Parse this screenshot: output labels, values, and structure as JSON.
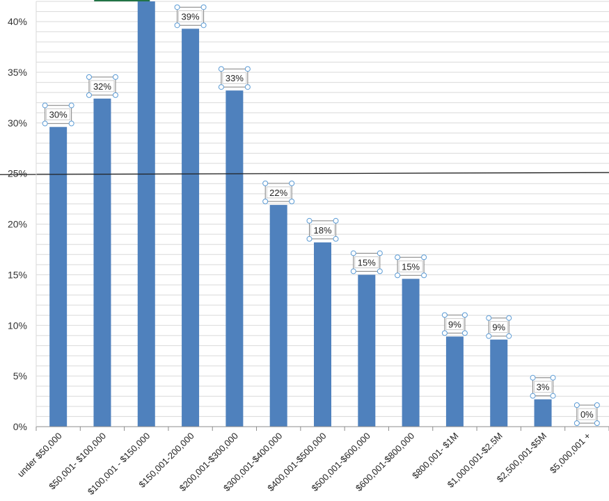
{
  "chart_data": {
    "type": "bar",
    "categories": [
      "under $50,000",
      "$50,001- $100,000",
      "$100,001 - $150,000",
      "$150,001-200,000",
      "$200,001-$300,000",
      "$300,001-$400,000",
      "$400,001-$500,000",
      "$500,001-$600,000",
      "$600,001-$800,000",
      "$800,001- $1M",
      "$1,000,001-$2.5M",
      "$2,500,001-$5M",
      "$5,000,001 +"
    ],
    "values": [
      29.6,
      32.4,
      42.0,
      39.3,
      33.2,
      21.9,
      18.2,
      15.0,
      14.6,
      8.9,
      8.6,
      2.7,
      0.0
    ],
    "data_labels": [
      "30%",
      "32%",
      "",
      "39%",
      "33%",
      "22%",
      "18%",
      "15%",
      "15%",
      "9%",
      "9%",
      "3%",
      "0%"
    ],
    "yticks": [
      "0%",
      "5%",
      "10%",
      "15%",
      "20%",
      "25%",
      "30%",
      "35%",
      "40%"
    ],
    "ylim": [
      0,
      42
    ],
    "reference_line": 25,
    "grid": true,
    "title": "",
    "xlabel": "",
    "ylabel": "",
    "colors": {
      "bar": "#4f81bd",
      "grid": "#d9d9d9",
      "reference_line": "#1f1f1f",
      "label_box_border": "#7f7f7f",
      "handle": "#5b9bd5",
      "top_marker": "#217346"
    }
  }
}
